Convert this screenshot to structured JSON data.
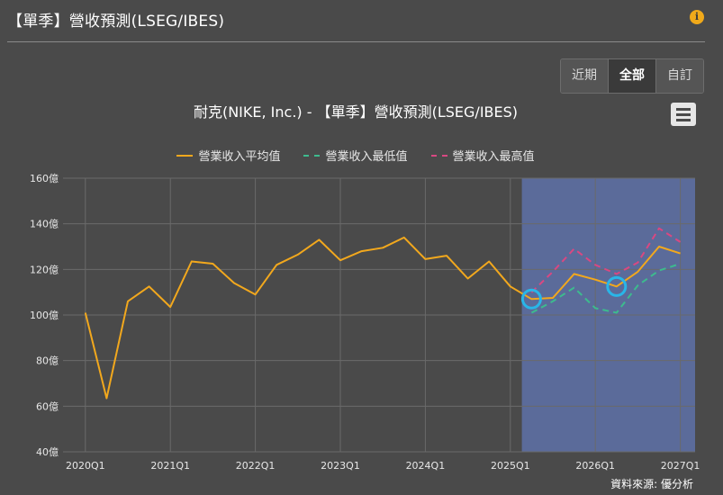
{
  "panel": {
    "title": "【單季】營收預測(LSEG/IBES)",
    "info_icon": "info-icon"
  },
  "range_buttons": [
    {
      "label": "近期",
      "active": false
    },
    {
      "label": "全部",
      "active": true
    },
    {
      "label": "自訂",
      "active": false
    }
  ],
  "menu_icon": "hamburger-menu-icon",
  "source_text": "資料來源: 優分析",
  "chart_data": {
    "type": "line",
    "title": "耐克(NIKE, Inc.) - 【單季】營收預測(LSEG/IBES)",
    "x": [
      "2020Q1",
      "2020Q2",
      "2020Q3",
      "2020Q4",
      "2021Q1",
      "2021Q2",
      "2021Q3",
      "2021Q4",
      "2022Q1",
      "2022Q2",
      "2022Q3",
      "2022Q4",
      "2023Q1",
      "2023Q2",
      "2023Q3",
      "2023Q4",
      "2024Q1",
      "2024Q2",
      "2024Q3",
      "2024Q4",
      "2025Q1",
      "2025Q2",
      "2025Q3",
      "2025Q4",
      "2026Q1",
      "2026Q2",
      "2026Q3",
      "2026Q4",
      "2027Q1",
      "2027Q2"
    ],
    "xticks": [
      "2020Q1",
      "2021Q1",
      "2022Q1",
      "2023Q1",
      "2024Q1",
      "2025Q1",
      "2026Q1",
      "2027Q1"
    ],
    "yticks": [
      "40億",
      "60億",
      "80億",
      "100億",
      "120億",
      "140億",
      "160億"
    ],
    "ylim": [
      40,
      160
    ],
    "grid": true,
    "legend_position": "top",
    "forecast_start": "2025Q2",
    "highlights": [
      "2025Q2",
      "2026Q2"
    ],
    "highlight_color": "#29b6e8",
    "forecast_band_color": "#5b6b9a",
    "series": [
      {
        "name": "營業收入平均值",
        "color": "#f2a81d",
        "dash": false,
        "values": [
          101,
          63.5,
          106,
          112.5,
          103.5,
          123.5,
          122.5,
          114,
          109,
          122,
          126.5,
          133,
          124,
          128,
          129.5,
          134,
          124.5,
          126,
          116,
          123.5,
          112.5,
          107,
          107.5,
          118,
          115.5,
          112.5,
          119,
          130,
          127,
          null
        ]
      },
      {
        "name": "營業收入最低值",
        "color": "#3dbb8e",
        "dash": true,
        "values": [
          null,
          null,
          null,
          null,
          null,
          null,
          null,
          null,
          null,
          null,
          null,
          null,
          null,
          null,
          null,
          null,
          null,
          null,
          null,
          null,
          null,
          101,
          106,
          112,
          103,
          101,
          113,
          119.5,
          122.5,
          null
        ]
      },
      {
        "name": "營業收入最高值",
        "color": "#d94882",
        "dash": true,
        "values": [
          null,
          null,
          null,
          null,
          null,
          null,
          null,
          null,
          null,
          null,
          null,
          null,
          null,
          null,
          null,
          null,
          null,
          null,
          null,
          null,
          null,
          110,
          119,
          129,
          122,
          118,
          123,
          138,
          132,
          null
        ]
      }
    ]
  }
}
